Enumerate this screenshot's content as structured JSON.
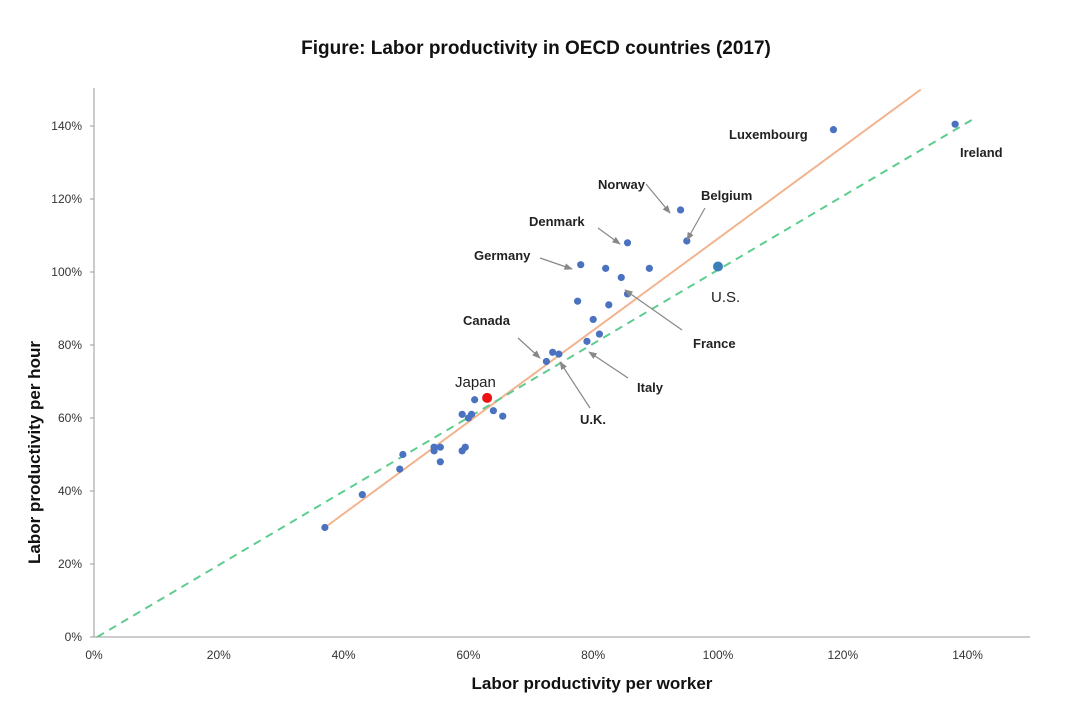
{
  "chart_data": {
    "type": "scatter",
    "title": "Figure: Labor productivity in OECD countries (2017)",
    "xlabel": "Labor productivity per worker",
    "ylabel": "Labor productivity per hour",
    "xlim": [
      0,
      150
    ],
    "ylim": [
      0,
      150
    ],
    "x_ticks": [
      "0%",
      "20%",
      "40%",
      "60%",
      "80%",
      "100%",
      "120%",
      "140%"
    ],
    "y_ticks": [
      "0%",
      "20%",
      "40%",
      "60%",
      "80%",
      "100%",
      "120%",
      "140%"
    ],
    "grid": false,
    "points": [
      {
        "x": 37,
        "y": 30
      },
      {
        "x": 43,
        "y": 39
      },
      {
        "x": 49,
        "y": 46
      },
      {
        "x": 49.5,
        "y": 50
      },
      {
        "x": 54.5,
        "y": 52
      },
      {
        "x": 55.5,
        "y": 52
      },
      {
        "x": 55.5,
        "y": 48
      },
      {
        "x": 54.5,
        "y": 51
      },
      {
        "x": 59,
        "y": 51
      },
      {
        "x": 59.5,
        "y": 52
      },
      {
        "x": 59,
        "y": 61
      },
      {
        "x": 60,
        "y": 60
      },
      {
        "x": 60.5,
        "y": 61
      },
      {
        "x": 61,
        "y": 65
      },
      {
        "x": 64,
        "y": 62
      },
      {
        "x": 65.5,
        "y": 60.5
      },
      {
        "x": 72.5,
        "y": 75.5
      },
      {
        "x": 73.5,
        "y": 78
      },
      {
        "x": 74.5,
        "y": 77.5
      },
      {
        "x": 77.5,
        "y": 92
      },
      {
        "x": 78,
        "y": 102
      },
      {
        "x": 79,
        "y": 81
      },
      {
        "x": 80,
        "y": 87
      },
      {
        "x": 81,
        "y": 83
      },
      {
        "x": 82,
        "y": 101
      },
      {
        "x": 82.5,
        "y": 91
      },
      {
        "x": 84.5,
        "y": 98.5
      },
      {
        "x": 85.5,
        "y": 108
      },
      {
        "x": 85.5,
        "y": 94
      },
      {
        "x": 89,
        "y": 101
      },
      {
        "x": 94,
        "y": 117
      },
      {
        "x": 95,
        "y": 108.5
      },
      {
        "x": 118.5,
        "y": 139
      },
      {
        "x": 138,
        "y": 140.5
      }
    ],
    "highlights": [
      {
        "label": "Japan",
        "x": 63,
        "y": 65.5,
        "color": "#ee1111"
      },
      {
        "label": "U.S.",
        "x": 100,
        "y": 101.5,
        "color": "#3a7fb8"
      }
    ],
    "trend_lines": [
      {
        "style": "solid",
        "color": "#f2b48e",
        "x": [
          37,
          132.5
        ],
        "y": [
          30,
          150
        ]
      },
      {
        "style": "dashed",
        "color": "#5dcc8e",
        "x": [
          0.5,
          141
        ],
        "y": [
          0,
          142
        ]
      }
    ],
    "annotations": [
      {
        "text": "Luxembourg"
      },
      {
        "text": "Ireland"
      },
      {
        "text": "Norway"
      },
      {
        "text": "Belgium"
      },
      {
        "text": "Denmark"
      },
      {
        "text": "Germany"
      },
      {
        "text": "France"
      },
      {
        "text": "Canada"
      },
      {
        "text": "Italy"
      },
      {
        "text": "U.K."
      }
    ],
    "point_color": "#4a72c0"
  }
}
